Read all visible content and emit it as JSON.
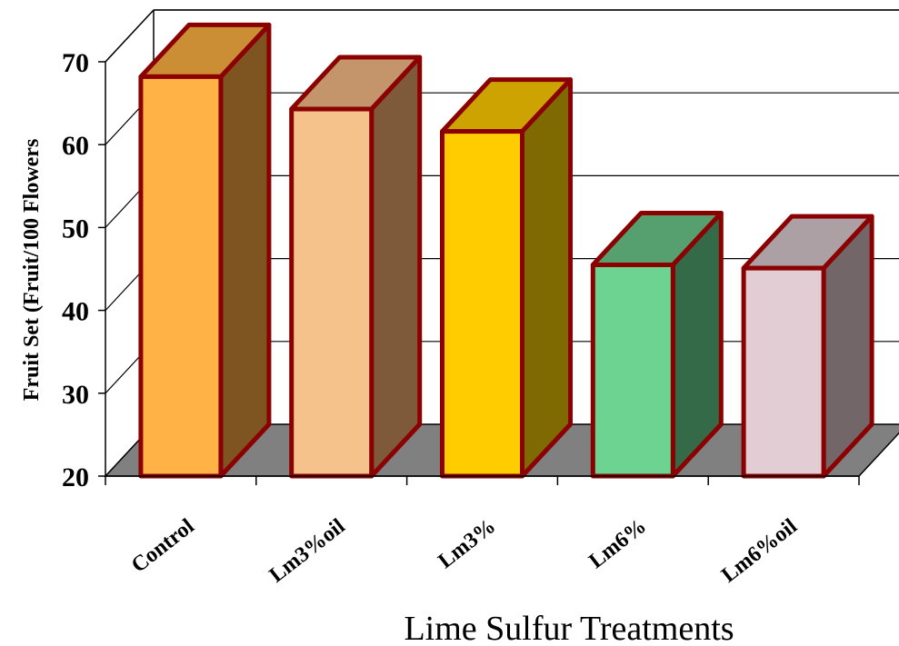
{
  "chart_data": {
    "type": "bar",
    "categories": [
      "Control",
      "Lm3%oil",
      "Lm3%",
      "Lm6%",
      "Lm6%oil"
    ],
    "values": [
      68.2,
      64.3,
      61.6,
      45.5,
      45.1
    ],
    "ylabel": "Fruit Set (Fruit/100 Flowers",
    "xlabel": "Lime Sulfur Treatments",
    "ylim": [
      20,
      70
    ],
    "yticks": [
      "20",
      "30",
      "40",
      "50",
      "60",
      "70"
    ],
    "grid": true,
    "three_d": true,
    "colors": {
      "bar_front": [
        "#FFB347",
        "#F5C28C",
        "#FFCC00",
        "#6CD490",
        "#E3CDD4"
      ],
      "bar_top": [
        "#CC8E35",
        "#C4956A",
        "#CCA300",
        "#56A070",
        "#ADA0A4"
      ],
      "bar_side": [
        "#7E5420",
        "#7E5A3A",
        "#7E6A00",
        "#356A48",
        "#736668"
      ],
      "outline": "#8B0000",
      "floor": "#808080"
    }
  }
}
